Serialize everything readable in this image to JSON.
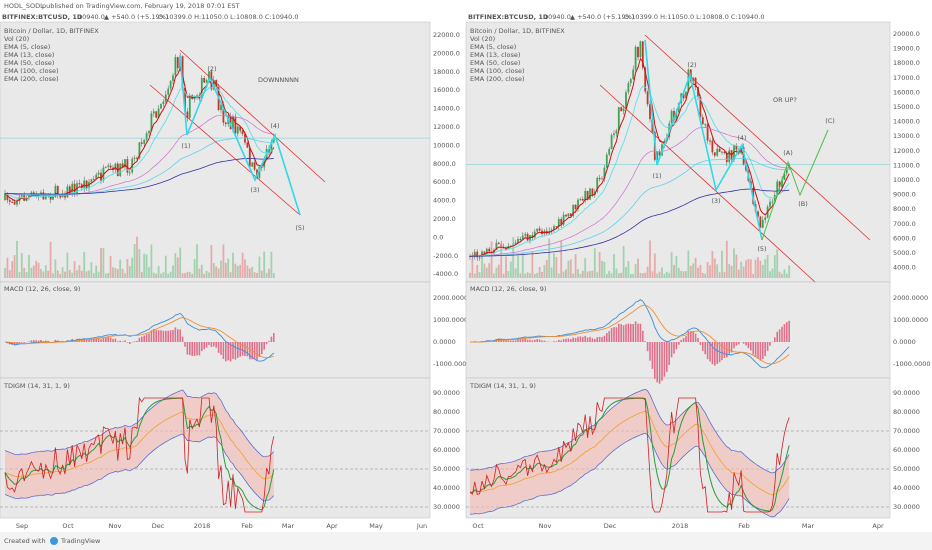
{
  "header": {
    "publisher": "HODL_SODL",
    "published": "published on TradingView.com, February 19, 2018 07:01 EST"
  },
  "left": {
    "symbol": "BITFINEX:BTCUSD, 1D",
    "price": "10940.0",
    "change": "▲ +540.0 (+5.19%)",
    "ohlc": "O:10399.0 H:11050.0 L:10808.0 C:10940.0",
    "legend": [
      "Bitcoin / Dollar, 1D, BITFINEX",
      "Vol (20)",
      "EMA (5, close)",
      "EMA (13, close)",
      "EMA (50, close)",
      "EMA (100, close)",
      "EMA (200, close)"
    ],
    "annotation": "DOWNNNNN",
    "waves": [
      "(1)",
      "(2)",
      "(3)",
      "(4)",
      "(5)"
    ],
    "price_axis": [
      "22000.0",
      "20000.0",
      "18000.0",
      "16000.0",
      "14000.0",
      "12000.0",
      "10000.0",
      "8000.0",
      "6000.0",
      "4000.0",
      "2000.0",
      "0.0",
      "-2000.0",
      "-4000.0"
    ],
    "macd_label": "MACD (12, 26, close, 9)",
    "macd_axis": [
      "2000.0000",
      "1000.0000",
      "0.0000",
      "-1000.0000"
    ],
    "tdigm_label": "TDIGM (14, 31, 1, 9)",
    "tdigm_axis": [
      "90.0000",
      "80.0000",
      "70.0000",
      "60.0000",
      "50.0000",
      "40.0000",
      "30.0000"
    ],
    "time_axis": [
      "Sep",
      "Oct",
      "Nov",
      "Dec",
      "2018",
      "Feb",
      "Mar",
      "Apr",
      "May",
      "Jun"
    ]
  },
  "right": {
    "symbol": "BITFINEX:BTCUSD, 1D",
    "price": "10940.0",
    "change": "▲ +540.0 (+5.19%)",
    "ohlc": "O:10399.0 H:11050.0 L:10808.0 C:10940.0",
    "legend": [
      "Bitcoin / Dollar, 1D, BITFINEX",
      "Vol (20)",
      "EMA (5, close)",
      "EMA (13, close)",
      "EMA (50, close)",
      "EMA (100, close)",
      "EMA (200, close)"
    ],
    "annotation": "OR UP?",
    "waves": [
      "(1)",
      "(2)",
      "(3)",
      "(4)",
      "(5)",
      "(A)",
      "(B)",
      "(C)"
    ],
    "price_axis": [
      "20000.0",
      "19000.0",
      "18000.0",
      "17000.0",
      "16000.0",
      "15000.0",
      "14000.0",
      "13000.0",
      "12000.0",
      "11000.0",
      "10000.0",
      "9000.0",
      "8000.0",
      "7000.0",
      "6000.0",
      "5000.0",
      "4000.0"
    ],
    "macd_label": "MACD (12, 26, close, 9)",
    "macd_axis": [
      "2000.0000",
      "1000.0000",
      "0.0000",
      "-1000.0000"
    ],
    "tdigm_label": "TDIGM (14, 31, 1, 9)",
    "tdigm_axis": [
      "90.0000",
      "80.0000",
      "70.0000",
      "60.0000",
      "50.0000",
      "40.0000",
      "30.0000"
    ],
    "time_axis": [
      "Oct",
      "Nov",
      "Dec",
      "2018",
      "Feb",
      "Mar",
      "Apr"
    ]
  },
  "footer": {
    "created": "Created with",
    "brand": "TradingView"
  }
}
